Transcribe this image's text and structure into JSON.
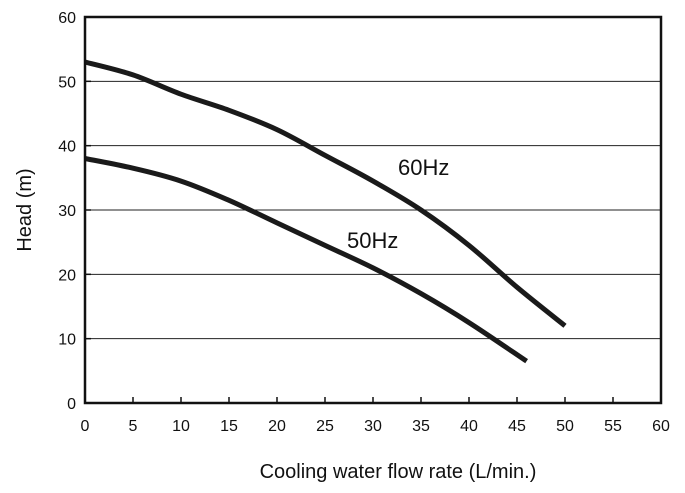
{
  "chart_data": {
    "type": "line",
    "title": "",
    "xlabel": "Cooling water flow rate (L/min.)",
    "ylabel": "Head (m)",
    "xlim": [
      0,
      60
    ],
    "ylim": [
      0,
      60
    ],
    "x_ticks": [
      "0",
      "5",
      "10",
      "15",
      "20",
      "25",
      "30",
      "35",
      "40",
      "45",
      "50",
      "55",
      "60"
    ],
    "y_ticks": [
      "0",
      "10",
      "20",
      "30",
      "40",
      "50",
      "60"
    ],
    "grid": "horizontal",
    "series": [
      {
        "name": "60Hz",
        "x": [
          0,
          5,
          10,
          15,
          20,
          25,
          30,
          35,
          40,
          45,
          50
        ],
        "y": [
          53,
          51,
          48,
          45.5,
          42.5,
          38.5,
          34.5,
          30,
          24.5,
          18,
          12
        ]
      },
      {
        "name": "50Hz",
        "x": [
          0,
          5,
          10,
          15,
          20,
          25,
          30,
          35,
          40,
          46
        ],
        "y": [
          38,
          36.5,
          34.5,
          31.5,
          28,
          24.5,
          21,
          17,
          12.5,
          6.5
        ]
      }
    ],
    "colors": {
      "line": "#1a1a1a",
      "grid": "#222222",
      "axis": "#111111"
    }
  }
}
